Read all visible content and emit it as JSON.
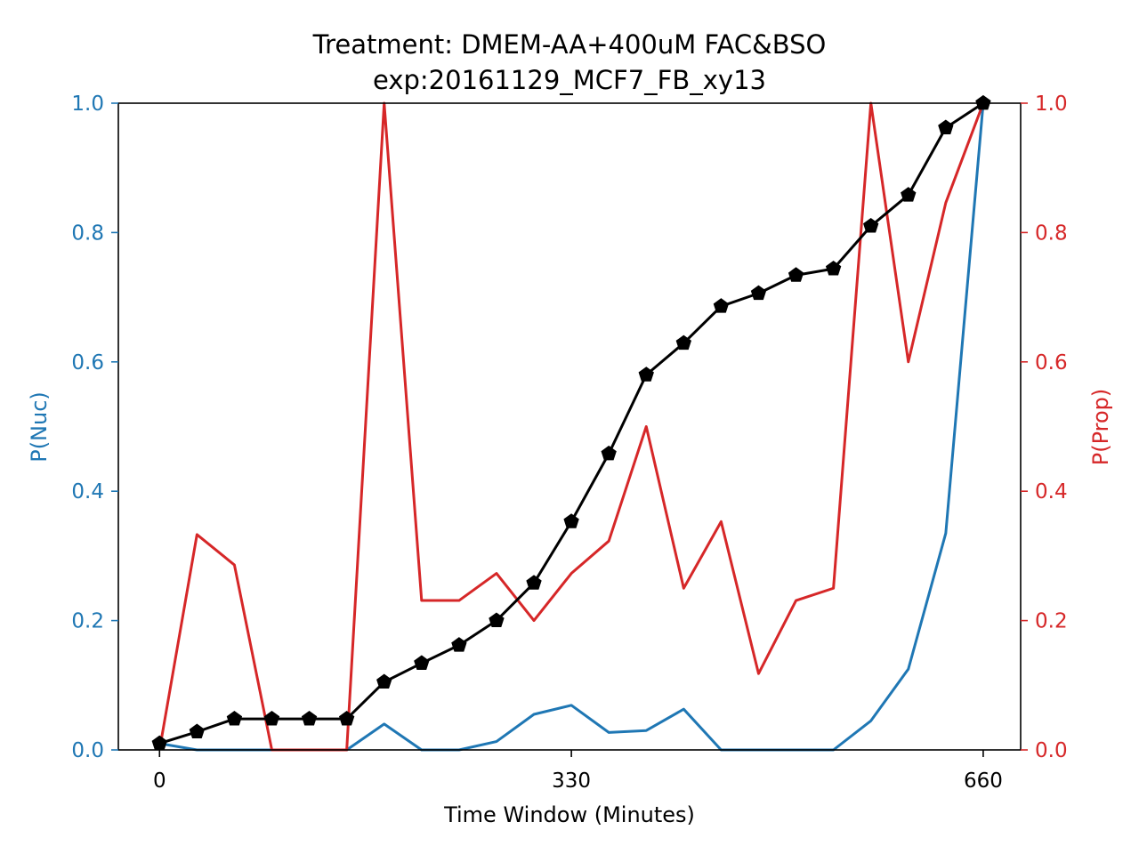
{
  "chart_data": {
    "type": "line",
    "title": "Treatment: DMEM-AA+400uM FAC&BSO",
    "subtitle": "exp:20161129_MCF7_FB_xy13",
    "xlabel": "Time Window (Minutes)",
    "ylabel_left": "P(Nuc)",
    "ylabel_right": "P(Prop)",
    "xlim": [
      -33,
      690
    ],
    "ylim_left": [
      0,
      1.0
    ],
    "ylim_right": [
      0,
      1.0
    ],
    "x_ticks": [
      0,
      330,
      660
    ],
    "x_tick_labels": [
      "0",
      "330",
      "660"
    ],
    "y_ticks_left": [
      0.0,
      0.2,
      0.4,
      0.6,
      0.8,
      1.0
    ],
    "y_tick_labels_left": [
      "0.0",
      "0.2",
      "0.4",
      "0.6",
      "0.8",
      "1.0"
    ],
    "y_ticks_right": [
      0.0,
      0.2,
      0.4,
      0.6,
      0.8,
      1.0
    ],
    "y_tick_labels_right": [
      "0.0",
      "0.2",
      "0.4",
      "0.6",
      "0.8",
      "1.0"
    ],
    "grid": false,
    "colors": {
      "left_axis": "#1f77b4",
      "right_axis": "#d62728",
      "cumulative": "#000000"
    },
    "x": [
      0,
      30,
      60,
      90,
      120,
      150,
      180,
      210,
      240,
      270,
      300,
      330,
      360,
      390,
      420,
      450,
      480,
      510,
      540,
      570,
      600,
      630,
      660
    ],
    "series": [
      {
        "axis": "left",
        "color": "#1f77b4",
        "marker": "none",
        "values": [
          0.01,
          0.0,
          0.0,
          0.0,
          0.0,
          0.0,
          0.04,
          0.0,
          0.0,
          0.013,
          0.055,
          0.069,
          0.027,
          0.03,
          0.063,
          0.0,
          0.0,
          0.0,
          0.0,
          0.045,
          0.125,
          0.335,
          1.0
        ]
      },
      {
        "axis": "right",
        "color": "#d62728",
        "marker": "none",
        "values": [
          0.0,
          0.333,
          0.286,
          0.0,
          0.0,
          0.0,
          1.0,
          0.231,
          0.231,
          0.273,
          0.2,
          0.273,
          0.323,
          0.5,
          0.25,
          0.353,
          0.118,
          0.231,
          0.25,
          1.0,
          0.6,
          0.846,
          1.0
        ]
      },
      {
        "axis": "left",
        "color": "#000000",
        "marker": "pentagon",
        "values": [
          0.01,
          0.028,
          0.048,
          0.048,
          0.048,
          0.048,
          0.105,
          0.134,
          0.162,
          0.2,
          0.258,
          0.353,
          0.458,
          0.58,
          0.629,
          0.686,
          0.706,
          0.734,
          0.744,
          0.81,
          0.858,
          0.962,
          1.0
        ]
      }
    ]
  }
}
